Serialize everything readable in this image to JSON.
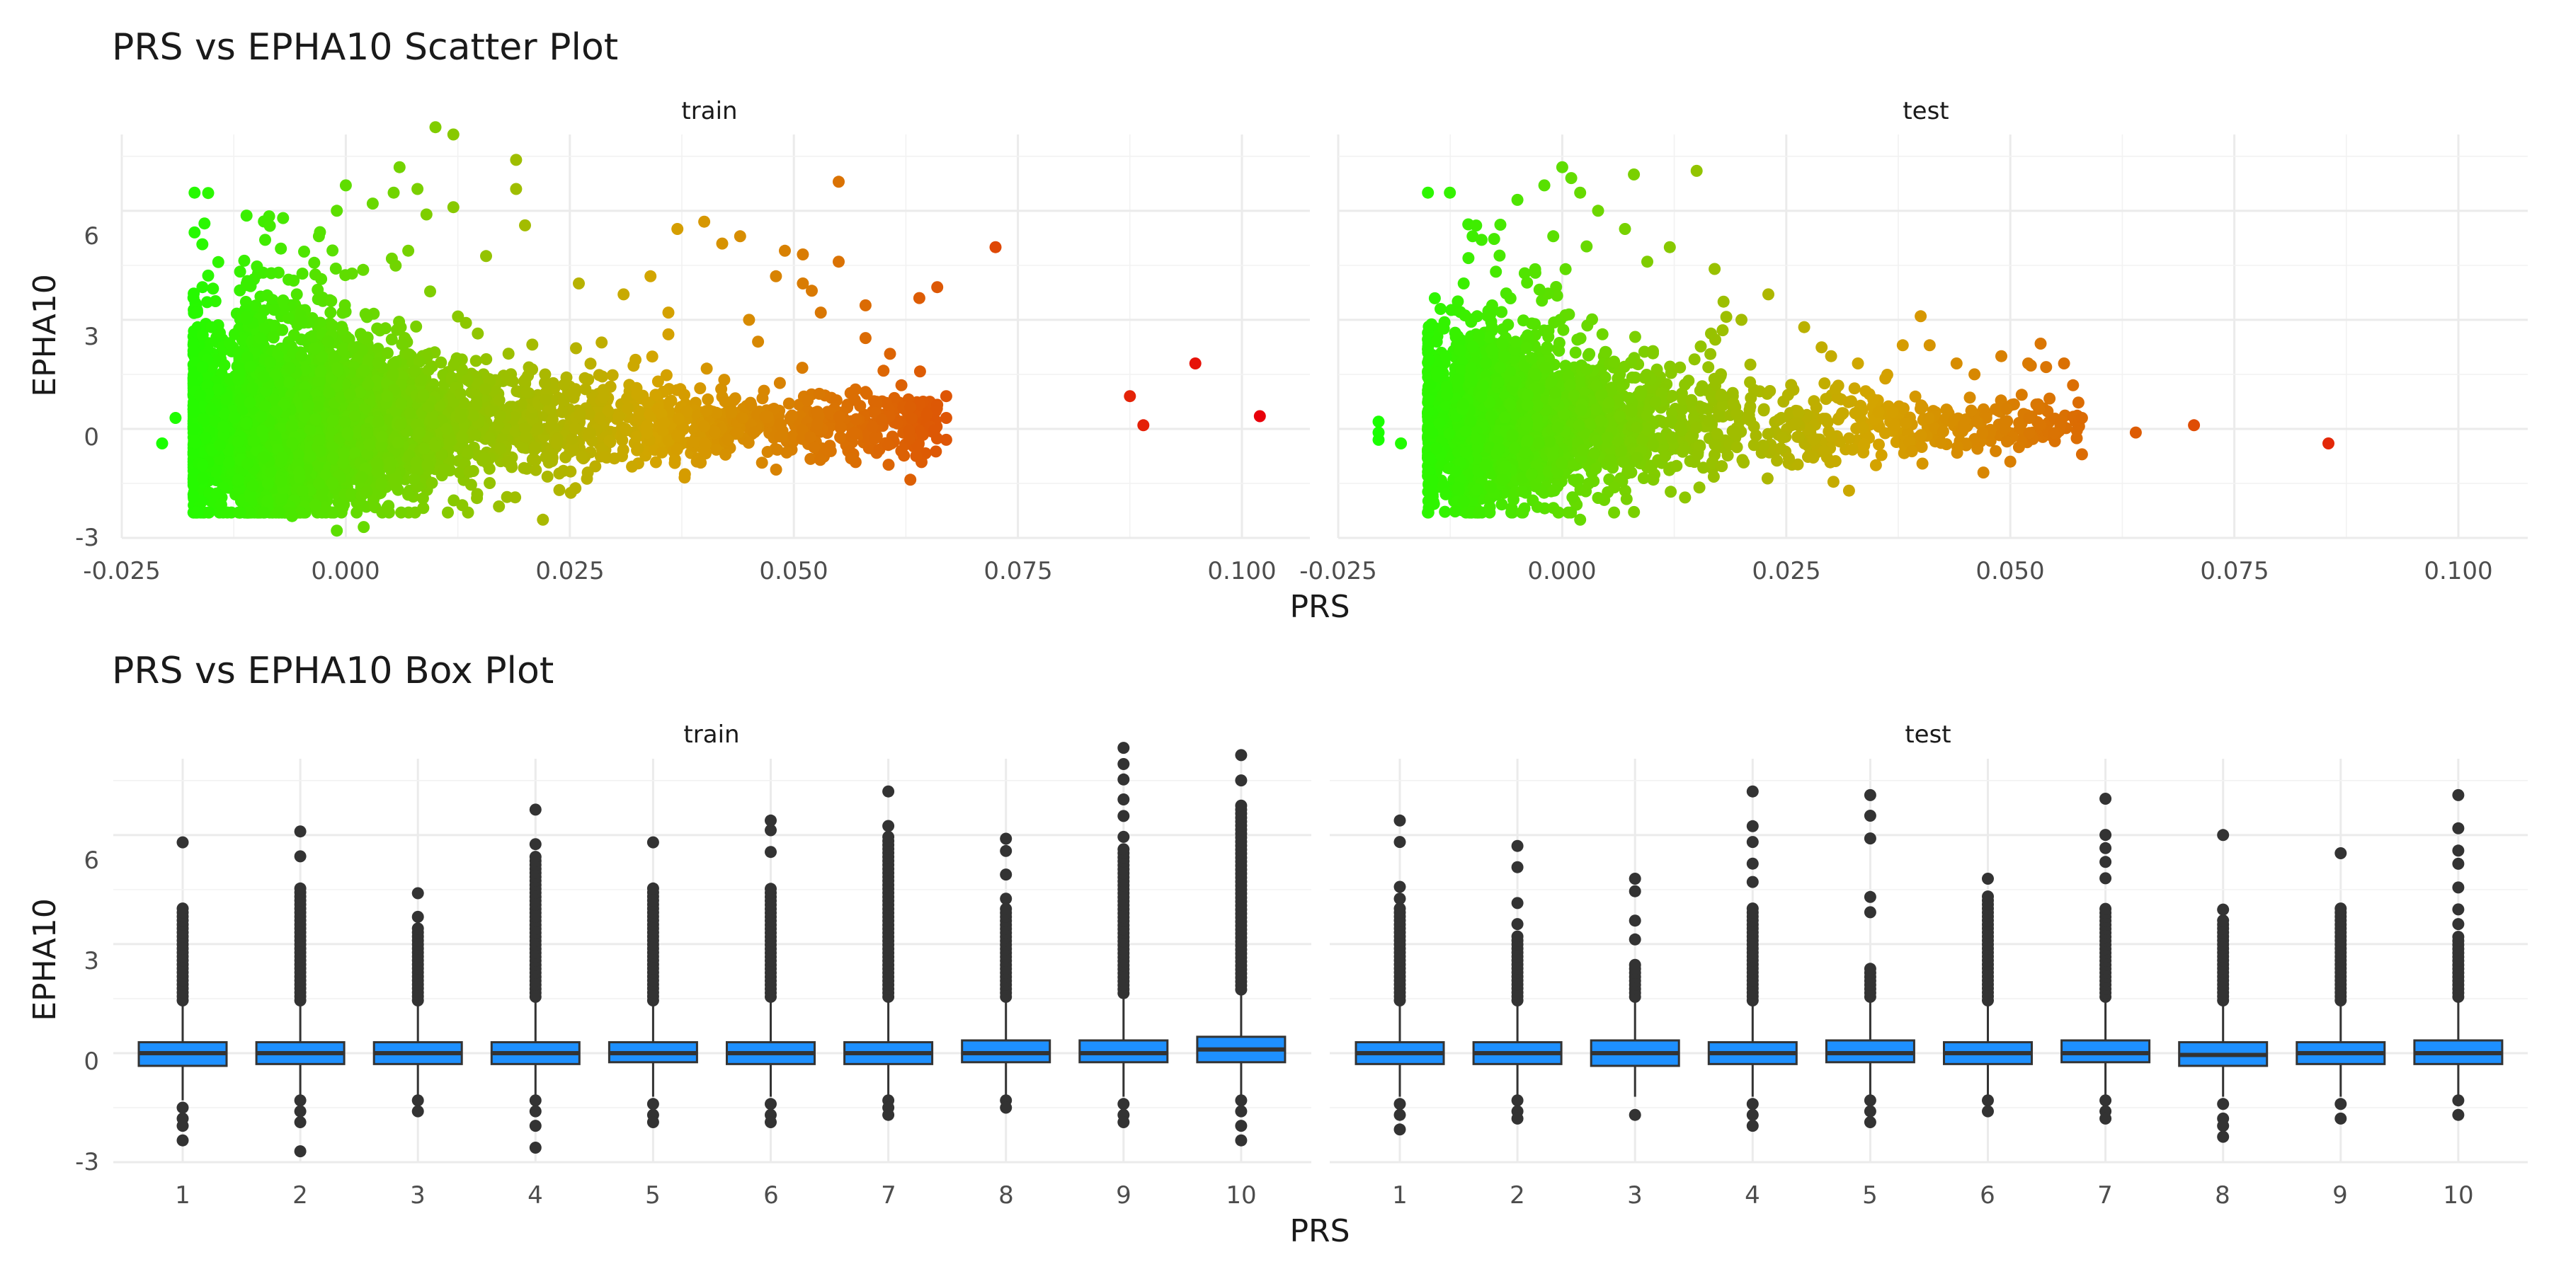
{
  "scatter": {
    "title": "PRS vs EPHA10 Scatter Plot",
    "xlabel": "PRS",
    "ylabel": "EPHA10",
    "panels": [
      "train",
      "test"
    ],
    "x_ticks": [
      "-0.025",
      "0.000",
      "0.025",
      "0.050",
      "0.075",
      "0.100"
    ],
    "y_ticks": [
      "-3",
      "0",
      "3",
      "6"
    ]
  },
  "box": {
    "title": "PRS vs EPHA10 Box Plot",
    "xlabel": "PRS",
    "ylabel": "EPHA10",
    "panels": [
      "train",
      "test"
    ],
    "x_ticks": [
      "1",
      "2",
      "3",
      "4",
      "5",
      "6",
      "7",
      "8",
      "9",
      "10"
    ],
    "y_ticks": [
      "-3",
      "0",
      "3",
      "6"
    ]
  },
  "colors": {
    "low": "#1aff00",
    "mid": "#d4a400",
    "high": "#e8000a",
    "box_fill": "#1e90ff",
    "box_line": "#333333",
    "outlier": "#333333",
    "grid": "#ebebeb"
  },
  "chart_data": [
    {
      "type": "scatter",
      "title": "PRS vs EPHA10 Scatter Plot",
      "xlabel": "PRS",
      "ylabel": "EPHA10",
      "xlim": [
        -0.025,
        0.105
      ],
      "ylim": [
        -3.0,
        8.1
      ],
      "color_scale": "PRS mapped green (low) to orange to red (high)",
      "grid": true,
      "panels": [
        {
          "name": "train",
          "bulk": {
            "x_range": [
              -0.017,
              0.066
            ],
            "y_center": 0.1,
            "y_spread": 1.2
          },
          "points": [
            {
              "x": -0.0205,
              "y": -0.4
            },
            {
              "x": -0.017,
              "y": 0.0
            },
            {
              "x": -0.016,
              "y": 3.9
            },
            {
              "x": -0.016,
              "y": 1.7
            },
            {
              "x": -0.016,
              "y": -1.0
            },
            {
              "x": -0.019,
              "y": 0.3
            },
            {
              "x": -0.015,
              "y": 2.8
            },
            {
              "x": -0.012,
              "y": -1.4
            },
            {
              "x": -0.009,
              "y": 5.2
            },
            {
              "x": -0.007,
              "y": 5.8
            },
            {
              "x": -0.006,
              "y": -2.4
            },
            {
              "x": -0.003,
              "y": 5.3
            },
            {
              "x": -0.001,
              "y": 6.0
            },
            {
              "x": -0.001,
              "y": -2.8
            },
            {
              "x": 0.0,
              "y": 6.7
            },
            {
              "x": 0.002,
              "y": -2.7
            },
            {
              "x": 0.003,
              "y": 6.2
            },
            {
              "x": 0.006,
              "y": 7.2
            },
            {
              "x": 0.008,
              "y": 6.6
            },
            {
              "x": 0.009,
              "y": 5.9
            },
            {
              "x": 0.01,
              "y": 8.3
            },
            {
              "x": 0.012,
              "y": 8.1
            },
            {
              "x": 0.012,
              "y": 6.1
            },
            {
              "x": 0.013,
              "y": -2.1
            },
            {
              "x": 0.019,
              "y": 7.4
            },
            {
              "x": 0.019,
              "y": 6.6
            },
            {
              "x": 0.02,
              "y": 5.6
            },
            {
              "x": 0.022,
              "y": -2.5
            },
            {
              "x": 0.026,
              "y": 4.0
            },
            {
              "x": 0.027,
              "y": -1.2
            },
            {
              "x": 0.031,
              "y": 3.7
            },
            {
              "x": 0.034,
              "y": 4.2
            },
            {
              "x": 0.036,
              "y": 3.2
            },
            {
              "x": 0.036,
              "y": 2.6
            },
            {
              "x": 0.037,
              "y": 5.5
            },
            {
              "x": 0.04,
              "y": 5.7
            },
            {
              "x": 0.042,
              "y": 5.1
            },
            {
              "x": 0.044,
              "y": 5.3
            },
            {
              "x": 0.045,
              "y": 3.0
            },
            {
              "x": 0.046,
              "y": 2.4
            },
            {
              "x": 0.048,
              "y": 4.2
            },
            {
              "x": 0.049,
              "y": 4.9
            },
            {
              "x": 0.051,
              "y": 4.8
            },
            {
              "x": 0.051,
              "y": 4.0
            },
            {
              "x": 0.052,
              "y": 3.8
            },
            {
              "x": 0.053,
              "y": 3.2
            },
            {
              "x": 0.055,
              "y": 6.8
            },
            {
              "x": 0.055,
              "y": 4.6
            },
            {
              "x": 0.058,
              "y": 3.4
            },
            {
              "x": 0.058,
              "y": 2.5
            },
            {
              "x": 0.06,
              "y": 1.6
            },
            {
              "x": 0.062,
              "y": 1.2
            },
            {
              "x": 0.063,
              "y": 0.6
            },
            {
              "x": 0.063,
              "y": -1.4
            },
            {
              "x": 0.064,
              "y": 3.6
            },
            {
              "x": 0.066,
              "y": 3.9
            },
            {
              "x": 0.067,
              "y": 0.9
            },
            {
              "x": 0.067,
              "y": 0.3
            },
            {
              "x": 0.067,
              "y": -0.3
            },
            {
              "x": 0.0725,
              "y": 5.0
            },
            {
              "x": 0.0875,
              "y": 0.9
            },
            {
              "x": 0.089,
              "y": 0.1
            },
            {
              "x": 0.0948,
              "y": 1.8
            },
            {
              "x": 0.102,
              "y": 0.35
            }
          ]
        },
        {
          "name": "test",
          "bulk": {
            "x_range": [
              -0.015,
              0.058
            ],
            "y_center": 0.1,
            "y_spread": 1.1
          },
          "points": [
            {
              "x": -0.0205,
              "y": 0.2
            },
            {
              "x": -0.0205,
              "y": -0.1
            },
            {
              "x": -0.0205,
              "y": -0.3
            },
            {
              "x": -0.018,
              "y": -0.4
            },
            {
              "x": -0.014,
              "y": 2.4
            },
            {
              "x": -0.013,
              "y": 2.0
            },
            {
              "x": -0.013,
              "y": -1.8
            },
            {
              "x": -0.011,
              "y": -2.0
            },
            {
              "x": -0.011,
              "y": 4.0
            },
            {
              "x": -0.01,
              "y": 5.3
            },
            {
              "x": -0.009,
              "y": 5.2
            },
            {
              "x": -0.008,
              "y": -1.6
            },
            {
              "x": -0.005,
              "y": 6.3
            },
            {
              "x": -0.002,
              "y": 6.7
            },
            {
              "x": -0.001,
              "y": 5.3
            },
            {
              "x": 0.0,
              "y": 7.2
            },
            {
              "x": 0.001,
              "y": 6.9
            },
            {
              "x": 0.002,
              "y": 6.5
            },
            {
              "x": 0.002,
              "y": -2.5
            },
            {
              "x": 0.004,
              "y": -1.9
            },
            {
              "x": 0.004,
              "y": 6.0
            },
            {
              "x": 0.007,
              "y": 5.5
            },
            {
              "x": 0.008,
              "y": 7.0
            },
            {
              "x": 0.012,
              "y": 5.0
            },
            {
              "x": 0.015,
              "y": 7.1
            },
            {
              "x": 0.017,
              "y": 4.4
            },
            {
              "x": 0.018,
              "y": 3.5
            },
            {
              "x": 0.02,
              "y": 3.0
            },
            {
              "x": 0.023,
              "y": 3.7
            },
            {
              "x": 0.027,
              "y": 2.8
            },
            {
              "x": 0.03,
              "y": 2.0
            },
            {
              "x": 0.032,
              "y": -1.7
            },
            {
              "x": 0.033,
              "y": 1.8
            },
            {
              "x": 0.035,
              "y": -1.0
            },
            {
              "x": 0.038,
              "y": 2.3
            },
            {
              "x": 0.04,
              "y": 3.1
            },
            {
              "x": 0.041,
              "y": 2.3
            },
            {
              "x": 0.044,
              "y": 1.8
            },
            {
              "x": 0.046,
              "y": 1.5
            },
            {
              "x": 0.047,
              "y": -1.2
            },
            {
              "x": 0.049,
              "y": 2.0
            },
            {
              "x": 0.05,
              "y": -0.9
            },
            {
              "x": 0.052,
              "y": 1.8
            },
            {
              "x": 0.054,
              "y": 1.7
            },
            {
              "x": 0.056,
              "y": 1.8
            },
            {
              "x": 0.057,
              "y": 1.2
            },
            {
              "x": 0.058,
              "y": 0.3
            },
            {
              "x": 0.058,
              "y": -0.7
            },
            {
              "x": 0.064,
              "y": -0.1
            },
            {
              "x": 0.0705,
              "y": 0.1
            },
            {
              "x": 0.0855,
              "y": -0.4
            }
          ]
        }
      ]
    },
    {
      "type": "box",
      "title": "PRS vs EPHA10 Box Plot",
      "xlabel": "PRS",
      "ylabel": "EPHA10",
      "categories": [
        "1",
        "2",
        "3",
        "4",
        "5",
        "6",
        "7",
        "8",
        "9",
        "10"
      ],
      "ylim": [
        -3.0,
        8.1
      ],
      "grid": true,
      "panels": [
        {
          "name": "train",
          "boxes": [
            {
              "q1": -0.35,
              "median": 0.0,
              "q3": 0.3,
              "whisker_low": -1.3,
              "whisker_high": 1.3,
              "out_high_max": 5.8,
              "out_low_min": -2.4,
              "dense_to": 4.0,
              "low_outliers": [
                -1.5,
                -1.8,
                -2.0,
                -2.4
              ]
            },
            {
              "q1": -0.3,
              "median": 0.0,
              "q3": 0.3,
              "whisker_low": -1.2,
              "whisker_high": 1.3,
              "out_high_max": 6.1,
              "out_low_min": -2.7,
              "dense_to": 4.6,
              "low_outliers": [
                -1.3,
                -1.6,
                -1.9,
                -2.7
              ]
            },
            {
              "q1": -0.3,
              "median": 0.0,
              "q3": 0.3,
              "whisker_low": -1.2,
              "whisker_high": 1.3,
              "out_high_max": 4.4,
              "out_low_min": -1.6,
              "dense_to": 3.5,
              "low_outliers": [
                -1.3,
                -1.6
              ]
            },
            {
              "q1": -0.3,
              "median": 0.0,
              "q3": 0.3,
              "whisker_low": -1.2,
              "whisker_high": 1.4,
              "out_high_max": 6.7,
              "out_low_min": -2.6,
              "dense_to": 5.5,
              "low_outliers": [
                -1.3,
                -1.6,
                -2.0,
                -2.6
              ]
            },
            {
              "q1": -0.25,
              "median": 0.0,
              "q3": 0.3,
              "whisker_low": -1.2,
              "whisker_high": 1.3,
              "out_high_max": 5.8,
              "out_low_min": -1.9,
              "dense_to": 4.6,
              "low_outliers": [
                -1.4,
                -1.7,
                -1.9
              ]
            },
            {
              "q1": -0.3,
              "median": 0.0,
              "q3": 0.3,
              "whisker_low": -1.2,
              "whisker_high": 1.4,
              "out_high_max": 6.4,
              "out_low_min": -1.9,
              "dense_to": 4.6,
              "low_outliers": [
                -1.4,
                -1.7,
                -1.9
              ]
            },
            {
              "q1": -0.3,
              "median": 0.0,
              "q3": 0.3,
              "whisker_low": -1.2,
              "whisker_high": 1.4,
              "out_high_max": 7.2,
              "out_low_min": -1.7,
              "dense_to": 6.0,
              "low_outliers": [
                -1.3,
                -1.5,
                -1.7
              ]
            },
            {
              "q1": -0.25,
              "median": 0.0,
              "q3": 0.35,
              "whisker_low": -1.2,
              "whisker_high": 1.4,
              "out_high_max": 5.9,
              "out_low_min": -1.5,
              "dense_to": 4.0,
              "low_outliers": [
                -1.3,
                -1.5
              ]
            },
            {
              "q1": -0.25,
              "median": 0.0,
              "q3": 0.35,
              "whisker_low": -1.2,
              "whisker_high": 1.5,
              "out_high_max": 8.4,
              "out_low_min": -1.9,
              "dense_to": 5.7,
              "low_outliers": [
                -1.4,
                -1.7,
                -1.9
              ]
            },
            {
              "q1": -0.25,
              "median": 0.1,
              "q3": 0.45,
              "whisker_low": -1.2,
              "whisker_high": 1.6,
              "out_high_max": 8.2,
              "out_low_min": -2.4,
              "dense_to": 6.9,
              "low_outliers": [
                -1.3,
                -1.6,
                -2.0,
                -2.4
              ]
            }
          ]
        },
        {
          "name": "test",
          "boxes": [
            {
              "q1": -0.3,
              "median": 0.0,
              "q3": 0.3,
              "whisker_low": -1.2,
              "whisker_high": 1.3,
              "out_high_max": 6.4,
              "out_low_min": -2.1,
              "dense_to": 4.0,
              "low_outliers": [
                -1.4,
                -1.7,
                -2.1
              ]
            },
            {
              "q1": -0.3,
              "median": 0.0,
              "q3": 0.3,
              "whisker_low": -1.2,
              "whisker_high": 1.3,
              "out_high_max": 5.7,
              "out_low_min": -1.8,
              "dense_to": 3.3,
              "low_outliers": [
                -1.3,
                -1.6,
                -1.8
              ]
            },
            {
              "q1": -0.35,
              "median": 0.0,
              "q3": 0.35,
              "whisker_low": -1.2,
              "whisker_high": 1.4,
              "out_high_max": 4.8,
              "out_low_min": -1.7,
              "dense_to": 2.5,
              "low_outliers": [
                -1.7
              ]
            },
            {
              "q1": -0.3,
              "median": 0.0,
              "q3": 0.3,
              "whisker_low": -1.2,
              "whisker_high": 1.3,
              "out_high_max": 7.2,
              "out_low_min": -2.0,
              "dense_to": 4.0,
              "low_outliers": [
                -1.4,
                -1.7,
                -2.0
              ]
            },
            {
              "q1": -0.25,
              "median": 0.0,
              "q3": 0.35,
              "whisker_low": -1.2,
              "whisker_high": 1.4,
              "out_high_max": 7.1,
              "out_low_min": -1.9,
              "dense_to": 2.4,
              "low_outliers": [
                -1.3,
                -1.6,
                -1.9
              ]
            },
            {
              "q1": -0.3,
              "median": 0.0,
              "q3": 0.3,
              "whisker_low": -1.2,
              "whisker_high": 1.3,
              "out_high_max": 4.8,
              "out_low_min": -1.6,
              "dense_to": 4.4,
              "low_outliers": [
                -1.3,
                -1.6
              ]
            },
            {
              "q1": -0.25,
              "median": 0.0,
              "q3": 0.35,
              "whisker_low": -1.2,
              "whisker_high": 1.4,
              "out_high_max": 7.0,
              "out_low_min": -1.8,
              "dense_to": 4.0,
              "low_outliers": [
                -1.3,
                -1.6,
                -1.8
              ]
            },
            {
              "q1": -0.35,
              "median": -0.05,
              "q3": 0.3,
              "whisker_low": -1.2,
              "whisker_high": 1.3,
              "out_high_max": 6.0,
              "out_low_min": -2.3,
              "dense_to": 3.7,
              "low_outliers": [
                -1.4,
                -1.8,
                -2.0,
                -2.3
              ]
            },
            {
              "q1": -0.3,
              "median": 0.0,
              "q3": 0.3,
              "whisker_low": -1.2,
              "whisker_high": 1.3,
              "out_high_max": 5.5,
              "out_low_min": -1.8,
              "dense_to": 4.0,
              "low_outliers": [
                -1.4,
                -1.8
              ]
            },
            {
              "q1": -0.3,
              "median": 0.0,
              "q3": 0.35,
              "whisker_low": -1.2,
              "whisker_high": 1.4,
              "out_high_max": 7.1,
              "out_low_min": -1.7,
              "dense_to": 3.3,
              "low_outliers": [
                -1.3,
                -1.7
              ]
            }
          ]
        }
      ]
    }
  ]
}
